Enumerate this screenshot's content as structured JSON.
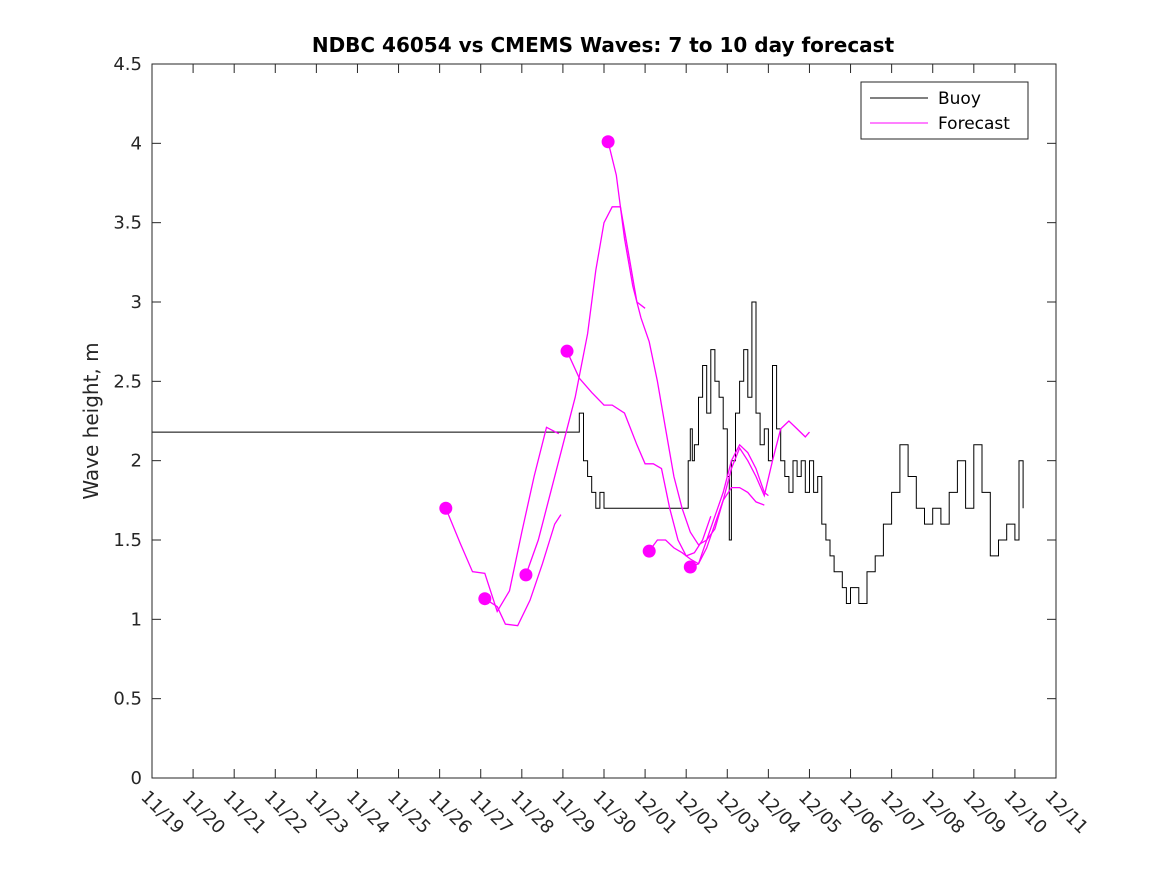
{
  "chart_data": {
    "type": "line",
    "title": "NDBC 46054 vs CMEMS Waves: 7 to 10 day forecast",
    "xlabel": "",
    "ylabel": "Wave height, m",
    "xlim": [
      0,
      22
    ],
    "ylim": [
      0,
      4.5
    ],
    "x_tick_labels": [
      "11/19",
      "11/20",
      "11/21",
      "11/22",
      "11/23",
      "11/24",
      "11/25",
      "11/26",
      "11/27",
      "11/28",
      "11/29",
      "11/30",
      "12/01",
      "12/02",
      "12/03",
      "12/04",
      "12/05",
      "12/06",
      "12/07",
      "12/08",
      "12/09",
      "12/10",
      "12/11"
    ],
    "y_ticks": [
      0,
      0.5,
      1,
      1.5,
      2,
      2.5,
      3,
      3.5,
      4,
      4.5
    ],
    "y_tick_labels": [
      "0",
      "0.5",
      "1",
      "1.5",
      "2",
      "2.5",
      "3",
      "3.5",
      "4",
      "4.5"
    ],
    "legend": {
      "position": "top-right",
      "entries": [
        {
          "name": "Buoy",
          "color": "#000000"
        },
        {
          "name": "Forecast",
          "color": "#ff00ff"
        }
      ]
    },
    "colors": {
      "buoy": "#000000",
      "forecast": "#ff00ff"
    },
    "buoy": {
      "name": "Buoy",
      "x": [
        0,
        10.4,
        10.45,
        10.5,
        10.6,
        10.7,
        10.8,
        10.9,
        11.0,
        11.1,
        11.2,
        11.3,
        11.4,
        11.5,
        11.6,
        11.7,
        11.8,
        11.9,
        12.0,
        12.1,
        12.2,
        12.3,
        12.4,
        12.5,
        12.6,
        12.7,
        12.8,
        12.9,
        13.0,
        13.05,
        13.1,
        13.15,
        13.2,
        13.3,
        13.4,
        13.5,
        13.6,
        13.7,
        13.8,
        13.9,
        14.0,
        14.05,
        14.1,
        14.2,
        14.3,
        14.4,
        14.5,
        14.6,
        14.7,
        14.8,
        14.9,
        15.0,
        15.1,
        15.2,
        15.3,
        15.4,
        15.5,
        15.6,
        15.7,
        15.8,
        15.9,
        16.0,
        16.1,
        16.2,
        16.3,
        16.4,
        16.5,
        16.6,
        16.7,
        16.8,
        16.9,
        17.0,
        17.2,
        17.4,
        17.6,
        17.8,
        18.0,
        18.2,
        18.4,
        18.6,
        18.8,
        19.0,
        19.2,
        19.4,
        19.6,
        19.8,
        20.0,
        20.2,
        20.4,
        20.6,
        20.8,
        21.0,
        21.1,
        21.2
      ],
      "values": [
        2.18,
        2.3,
        2.3,
        2.0,
        1.9,
        1.8,
        1.7,
        1.8,
        1.7,
        1.7,
        1.7,
        1.7,
        1.7,
        1.7,
        1.7,
        1.7,
        1.7,
        1.7,
        1.7,
        1.7,
        1.7,
        1.7,
        1.7,
        1.7,
        1.7,
        1.7,
        1.7,
        1.7,
        1.7,
        2.0,
        2.2,
        2.0,
        2.1,
        2.4,
        2.6,
        2.3,
        2.7,
        2.5,
        2.4,
        2.2,
        1.9,
        1.5,
        2.0,
        2.3,
        2.5,
        2.7,
        2.4,
        3.0,
        2.3,
        2.1,
        2.2,
        2.0,
        2.6,
        2.2,
        2.0,
        1.9,
        1.8,
        2.0,
        1.9,
        2.0,
        1.8,
        2.0,
        1.8,
        1.9,
        1.6,
        1.5,
        1.4,
        1.3,
        1.3,
        1.2,
        1.1,
        1.2,
        1.1,
        1.3,
        1.4,
        1.6,
        1.8,
        2.1,
        1.9,
        1.7,
        1.6,
        1.7,
        1.6,
        1.8,
        2.0,
        1.7,
        2.1,
        1.8,
        1.4,
        1.5,
        1.6,
        1.5,
        2.0,
        1.7
      ]
    },
    "forecast": [
      {
        "name": "Forecast",
        "x": [
          7.15,
          7.5,
          7.8,
          8.1,
          8.4,
          8.7,
          9.0,
          9.3,
          9.6,
          9.9
        ],
        "values": [
          1.7,
          1.48,
          1.3,
          1.29,
          1.05,
          1.18,
          1.55,
          1.9,
          2.21,
          2.17
        ]
      },
      {
        "name": "Forecast",
        "x": [
          8.1,
          8.4,
          8.6,
          8.9,
          9.2,
          9.5,
          9.8,
          9.95
        ],
        "values": [
          1.13,
          1.08,
          0.97,
          0.96,
          1.12,
          1.35,
          1.6,
          1.66
        ]
      },
      {
        "name": "Forecast",
        "x": [
          9.1,
          9.4,
          9.7,
          10.0,
          10.3,
          10.6,
          10.8,
          11.0,
          11.2,
          11.4,
          11.6,
          11.8,
          12.0
        ],
        "values": [
          1.28,
          1.5,
          1.8,
          2.1,
          2.4,
          2.8,
          3.2,
          3.5,
          3.6,
          3.6,
          3.3,
          3.0,
          2.96
        ]
      },
      {
        "name": "Forecast",
        "x": [
          10.1,
          10.4,
          10.7,
          11.0,
          11.2,
          11.5,
          11.8,
          12.0,
          12.2,
          12.4,
          12.6,
          12.8,
          13.0,
          13.2,
          13.4,
          13.6
        ],
        "values": [
          2.69,
          2.52,
          2.43,
          2.35,
          2.35,
          2.3,
          2.1,
          1.98,
          1.98,
          1.95,
          1.7,
          1.5,
          1.4,
          1.42,
          1.5,
          1.65
        ]
      },
      {
        "name": "Forecast",
        "x": [
          11.1,
          11.3,
          11.5,
          11.7,
          11.9,
          12.1,
          12.3,
          12.5,
          12.7,
          12.9,
          13.1,
          13.3,
          13.5,
          13.7,
          13.9,
          14.1,
          14.3,
          14.5,
          14.7,
          14.9,
          15.1,
          15.3,
          15.5,
          15.7,
          15.9,
          16.0
        ],
        "values": [
          4.01,
          3.8,
          3.4,
          3.1,
          2.9,
          2.75,
          2.5,
          2.2,
          1.9,
          1.7,
          1.55,
          1.47,
          1.5,
          1.57,
          1.75,
          1.95,
          2.08,
          2.0,
          1.9,
          1.78,
          2.0,
          2.2,
          2.25,
          2.2,
          2.15,
          2.18
        ]
      },
      {
        "name": "Forecast",
        "x": [
          12.1,
          12.3,
          12.5,
          12.7,
          12.9,
          13.1,
          13.3,
          13.5,
          13.7,
          13.9,
          14.1,
          14.3,
          14.5,
          14.7,
          14.9
        ],
        "values": [
          1.43,
          1.5,
          1.5,
          1.45,
          1.42,
          1.38,
          1.35,
          1.45,
          1.6,
          1.75,
          1.83,
          1.83,
          1.8,
          1.74,
          1.72
        ]
      },
      {
        "name": "Forecast",
        "x": [
          13.1,
          13.3,
          13.5,
          13.7,
          13.9,
          14.1,
          14.3,
          14.5,
          14.7,
          14.9,
          15.0
        ],
        "values": [
          1.33,
          1.35,
          1.5,
          1.65,
          1.8,
          2.0,
          2.1,
          2.05,
          1.95,
          1.8,
          1.78
        ]
      }
    ]
  }
}
